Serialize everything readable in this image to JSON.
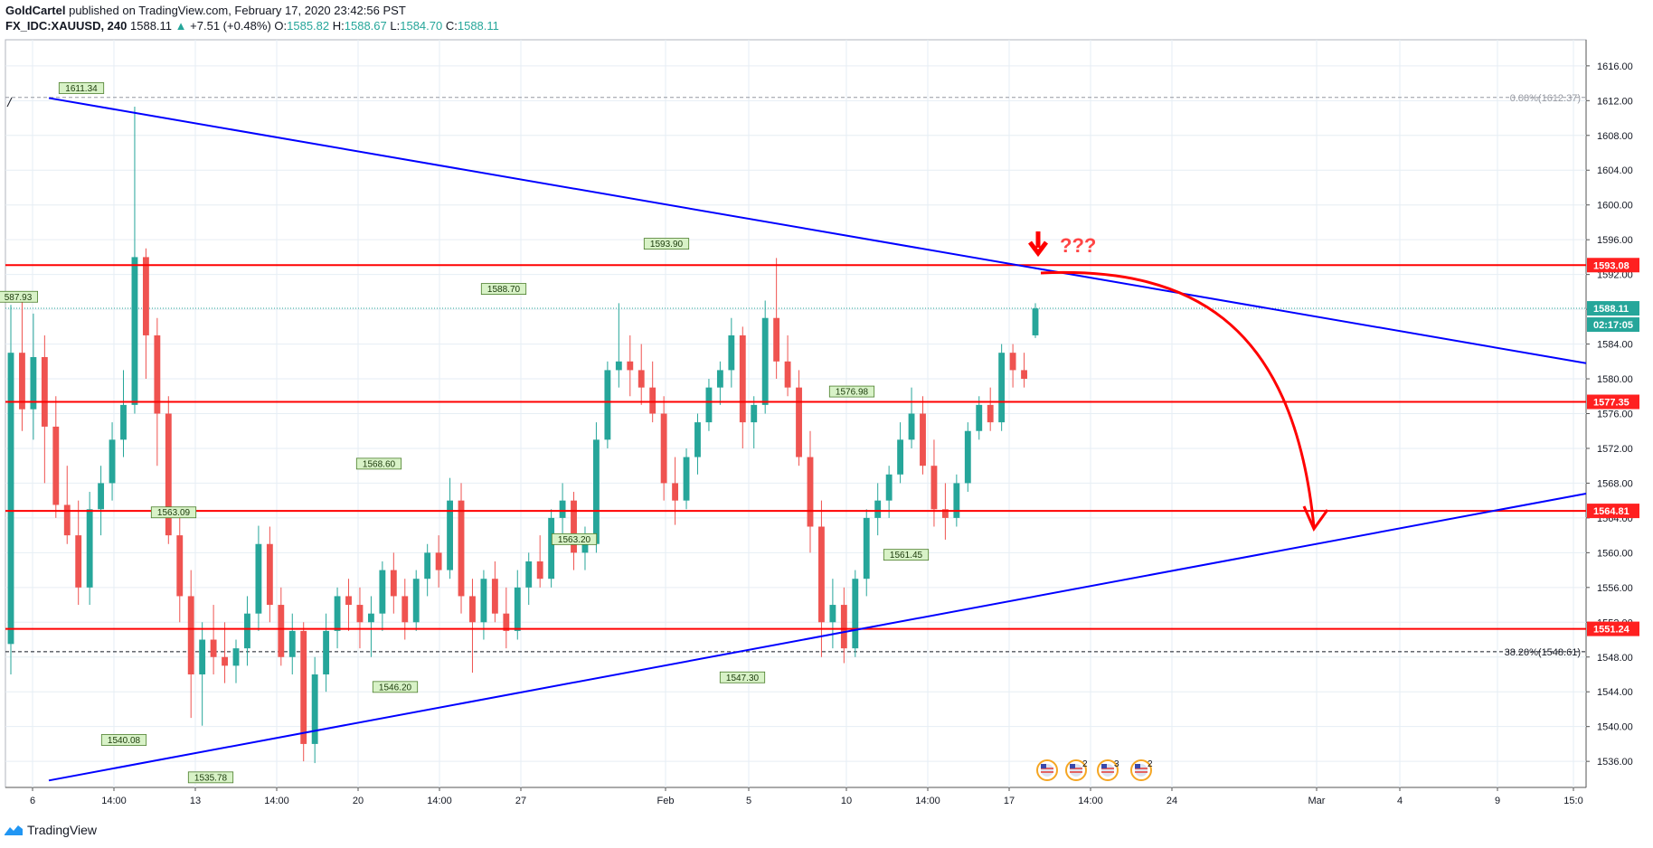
{
  "header": {
    "publisher": "GoldCartel",
    "published_text": "published on TradingView.com, February 17, 2020 23:42:56 PST",
    "symbol": "FX_IDC:XAUUSD, 240",
    "last": "1588.11",
    "change": "+7.51 (+0.48%)",
    "o_label": "O:",
    "o_value": "1585.82",
    "h_label": "H:",
    "h_value": "1588.67",
    "l_label": "L:",
    "l_value": "1584.70",
    "c_label": "C:",
    "c_value": "1588.11"
  },
  "footer": {
    "brand": "TradingView",
    "logo_icon": "tradingview-logo-icon"
  },
  "colors": {
    "up": "#26a69a",
    "down": "#ef5350",
    "support_resistance": "#ff0000",
    "trendline": "#0000ff",
    "grid": "#e6eef4",
    "price_tag_bg": "#26a69a",
    "level_tag_bg": "#ff2020"
  },
  "chart_data": {
    "type": "candlestick",
    "timeframe": "240",
    "ylim": [
      1533,
      1619
    ],
    "y_ticks": [
      "1616.00",
      "1612.00",
      "1608.00",
      "1604.00",
      "1600.00",
      "1596.00",
      "1592.00",
      "1588.00",
      "1584.00",
      "1580.00",
      "1576.00",
      "1572.00",
      "1568.00",
      "1564.00",
      "1560.00",
      "1556.00",
      "1552.00",
      "1548.00",
      "1544.00",
      "1540.00",
      "1536.00"
    ],
    "x_ticks": [
      "6",
      "14:00",
      "13",
      "14:00",
      "20",
      "14:00",
      "27",
      "Feb",
      "5",
      "10",
      "14:00",
      "17",
      "14:00",
      "24",
      "Mar",
      "4",
      "9",
      "15:0"
    ],
    "candles_ohlc": [
      [
        1549.5,
        1588.5,
        1546.0,
        1583.0
      ],
      [
        1583.0,
        1589.0,
        1574.0,
        1576.5
      ],
      [
        1576.5,
        1587.5,
        1573.0,
        1582.5
      ],
      [
        1582.5,
        1585.0,
        1568.0,
        1574.5
      ],
      [
        1574.5,
        1578.0,
        1564.0,
        1565.5
      ],
      [
        1565.5,
        1570.0,
        1561.0,
        1562.0
      ],
      [
        1562.0,
        1566.0,
        1554.0,
        1556.0
      ],
      [
        1556.0,
        1567.0,
        1554.0,
        1565.0
      ],
      [
        1565.0,
        1570.0,
        1562.0,
        1568.0
      ],
      [
        1568.0,
        1575.0,
        1566.0,
        1573.0
      ],
      [
        1573.0,
        1581.0,
        1571.0,
        1577.0
      ],
      [
        1577.0,
        1611.3,
        1576.0,
        1594.0
      ],
      [
        1594.0,
        1595.0,
        1580.0,
        1585.0
      ],
      [
        1585.0,
        1587.0,
        1570.0,
        1576.0
      ],
      [
        1576.0,
        1578.0,
        1561.0,
        1562.0
      ],
      [
        1562.0,
        1564.0,
        1552.0,
        1555.0
      ],
      [
        1555.0,
        1558.0,
        1541.0,
        1546.0
      ],
      [
        1546.0,
        1552.0,
        1540.1,
        1550.0
      ],
      [
        1550.0,
        1554.0,
        1546.0,
        1548.0
      ],
      [
        1548.0,
        1552.0,
        1545.0,
        1547.0
      ],
      [
        1547.0,
        1550.0,
        1545.0,
        1549.0
      ],
      [
        1549.0,
        1555.0,
        1547.0,
        1553.0
      ],
      [
        1553.0,
        1563.1,
        1551.0,
        1561.0
      ],
      [
        1561.0,
        1563.0,
        1552.0,
        1554.0
      ],
      [
        1554.0,
        1556.0,
        1547.0,
        1548.0
      ],
      [
        1548.0,
        1553.0,
        1546.0,
        1551.0
      ],
      [
        1551.0,
        1552.0,
        1536.0,
        1538.0
      ],
      [
        1538.0,
        1548.0,
        1535.8,
        1546.0
      ],
      [
        1546.0,
        1553.0,
        1544.0,
        1551.0
      ],
      [
        1551.0,
        1556.0,
        1549.0,
        1555.0
      ],
      [
        1555.0,
        1557.0,
        1551.0,
        1554.0
      ],
      [
        1554.0,
        1556.0,
        1549.0,
        1552.0
      ],
      [
        1552.0,
        1555.0,
        1548.0,
        1553.0
      ],
      [
        1553.0,
        1559.0,
        1551.0,
        1558.0
      ],
      [
        1558.0,
        1560.0,
        1553.0,
        1555.0
      ],
      [
        1555.0,
        1557.0,
        1550.0,
        1552.0
      ],
      [
        1552.0,
        1558.0,
        1551.0,
        1557.0
      ],
      [
        1557.0,
        1561.0,
        1555.0,
        1560.0
      ],
      [
        1560.0,
        1562.0,
        1556.0,
        1558.0
      ],
      [
        1558.0,
        1568.6,
        1557.0,
        1566.0
      ],
      [
        1566.0,
        1568.0,
        1553.0,
        1555.0
      ],
      [
        1555.0,
        1557.0,
        1546.2,
        1552.0
      ],
      [
        1552.0,
        1558.0,
        1550.0,
        1557.0
      ],
      [
        1557.0,
        1559.0,
        1552.0,
        1553.0
      ],
      [
        1553.0,
        1556.0,
        1549.0,
        1551.0
      ],
      [
        1551.0,
        1558.0,
        1550.0,
        1556.0
      ],
      [
        1556.0,
        1560.0,
        1554.0,
        1559.0
      ],
      [
        1559.0,
        1562.0,
        1556.0,
        1557.0
      ],
      [
        1557.0,
        1565.0,
        1556.0,
        1564.0
      ],
      [
        1564.0,
        1568.0,
        1562.0,
        1566.0
      ],
      [
        1566.0,
        1567.0,
        1558.0,
        1560.0
      ],
      [
        1560.0,
        1563.0,
        1558.0,
        1561.0
      ],
      [
        1561.0,
        1575.0,
        1560.0,
        1573.0
      ],
      [
        1573.0,
        1582.0,
        1572.0,
        1581.0
      ],
      [
        1581.0,
        1588.7,
        1579.0,
        1582.0
      ],
      [
        1582.0,
        1585.0,
        1578.0,
        1581.0
      ],
      [
        1581.0,
        1584.0,
        1577.0,
        1579.0
      ],
      [
        1579.0,
        1582.0,
        1575.0,
        1576.0
      ],
      [
        1576.0,
        1578.0,
        1566.0,
        1568.0
      ],
      [
        1568.0,
        1571.0,
        1563.2,
        1566.0
      ],
      [
        1566.0,
        1572.0,
        1565.0,
        1571.0
      ],
      [
        1571.0,
        1576.0,
        1569.0,
        1575.0
      ],
      [
        1575.0,
        1580.0,
        1574.0,
        1579.0
      ],
      [
        1579.0,
        1582.0,
        1577.0,
        1581.0
      ],
      [
        1581.0,
        1587.0,
        1579.0,
        1585.0
      ],
      [
        1585.0,
        1586.0,
        1572.0,
        1575.0
      ],
      [
        1575.0,
        1578.0,
        1572.0,
        1577.0
      ],
      [
        1577.0,
        1589.0,
        1576.0,
        1587.0
      ],
      [
        1587.0,
        1593.9,
        1580.0,
        1582.0
      ],
      [
        1582.0,
        1585.0,
        1578.0,
        1579.0
      ],
      [
        1579.0,
        1581.0,
        1570.0,
        1571.0
      ],
      [
        1571.0,
        1574.0,
        1560.0,
        1563.0
      ],
      [
        1563.0,
        1566.0,
        1548.0,
        1552.0
      ],
      [
        1552.0,
        1557.0,
        1549.0,
        1554.0
      ],
      [
        1554.0,
        1556.0,
        1547.3,
        1549.0
      ],
      [
        1549.0,
        1558.0,
        1548.0,
        1557.0
      ],
      [
        1557.0,
        1565.0,
        1555.0,
        1564.0
      ],
      [
        1564.0,
        1568.0,
        1562.0,
        1566.0
      ],
      [
        1566.0,
        1570.0,
        1564.0,
        1569.0
      ],
      [
        1569.0,
        1575.0,
        1568.0,
        1573.0
      ],
      [
        1573.0,
        1579.0,
        1572.0,
        1576.0
      ],
      [
        1576.0,
        1578.0,
        1569.0,
        1570.0
      ],
      [
        1570.0,
        1573.0,
        1563.0,
        1565.0
      ],
      [
        1565.0,
        1568.0,
        1561.5,
        1564.0
      ],
      [
        1564.0,
        1569.0,
        1563.0,
        1568.0
      ],
      [
        1568.0,
        1575.0,
        1567.0,
        1574.0
      ],
      [
        1574.0,
        1578.0,
        1573.0,
        1577.0
      ],
      [
        1577.0,
        1579.0,
        1574.0,
        1575.0
      ],
      [
        1575.0,
        1584.0,
        1574.0,
        1583.0
      ],
      [
        1583.0,
        1584.0,
        1579.0,
        1581.0
      ],
      [
        1581.0,
        1583.0,
        1579.0,
        1580.0
      ],
      [
        1585.0,
        1588.7,
        1584.7,
        1588.1
      ]
    ],
    "bubble_labels": [
      "1611.34",
      "1593.90",
      "1588.70",
      "1576.98",
      "1568.60",
      "1563.09",
      "1563.20",
      "1561.45",
      "1546.20",
      "1547.30",
      "1540.08",
      "1535.78",
      "587.93"
    ],
    "horizontal_levels": [
      "1593.08",
      "1577.35",
      "1564.81",
      "1551.24"
    ],
    "current_price": "1588.11",
    "countdown": "02:17:05",
    "fib_levels": [
      {
        "label": "0.00%(1612.37)",
        "price": 1612.37
      },
      {
        "label": "38.20%(1548.61)",
        "price": 1548.61
      }
    ],
    "trendlines": [
      {
        "name": "descending-resistance",
        "from": [
          0,
          1612.3
        ],
        "to": [
          1,
          1581.8
        ]
      },
      {
        "name": "ascending-support",
        "from": [
          0,
          1533.8
        ],
        "to": [
          1,
          1566.8
        ]
      }
    ],
    "annotation_text": "???",
    "events_icons": [
      "us-flag-event-icon",
      "us-flag-event-icon",
      "us-flag-event-icon",
      "us-flag-event-icon"
    ],
    "event_counts": [
      "5",
      "2",
      "3",
      "2"
    ]
  }
}
